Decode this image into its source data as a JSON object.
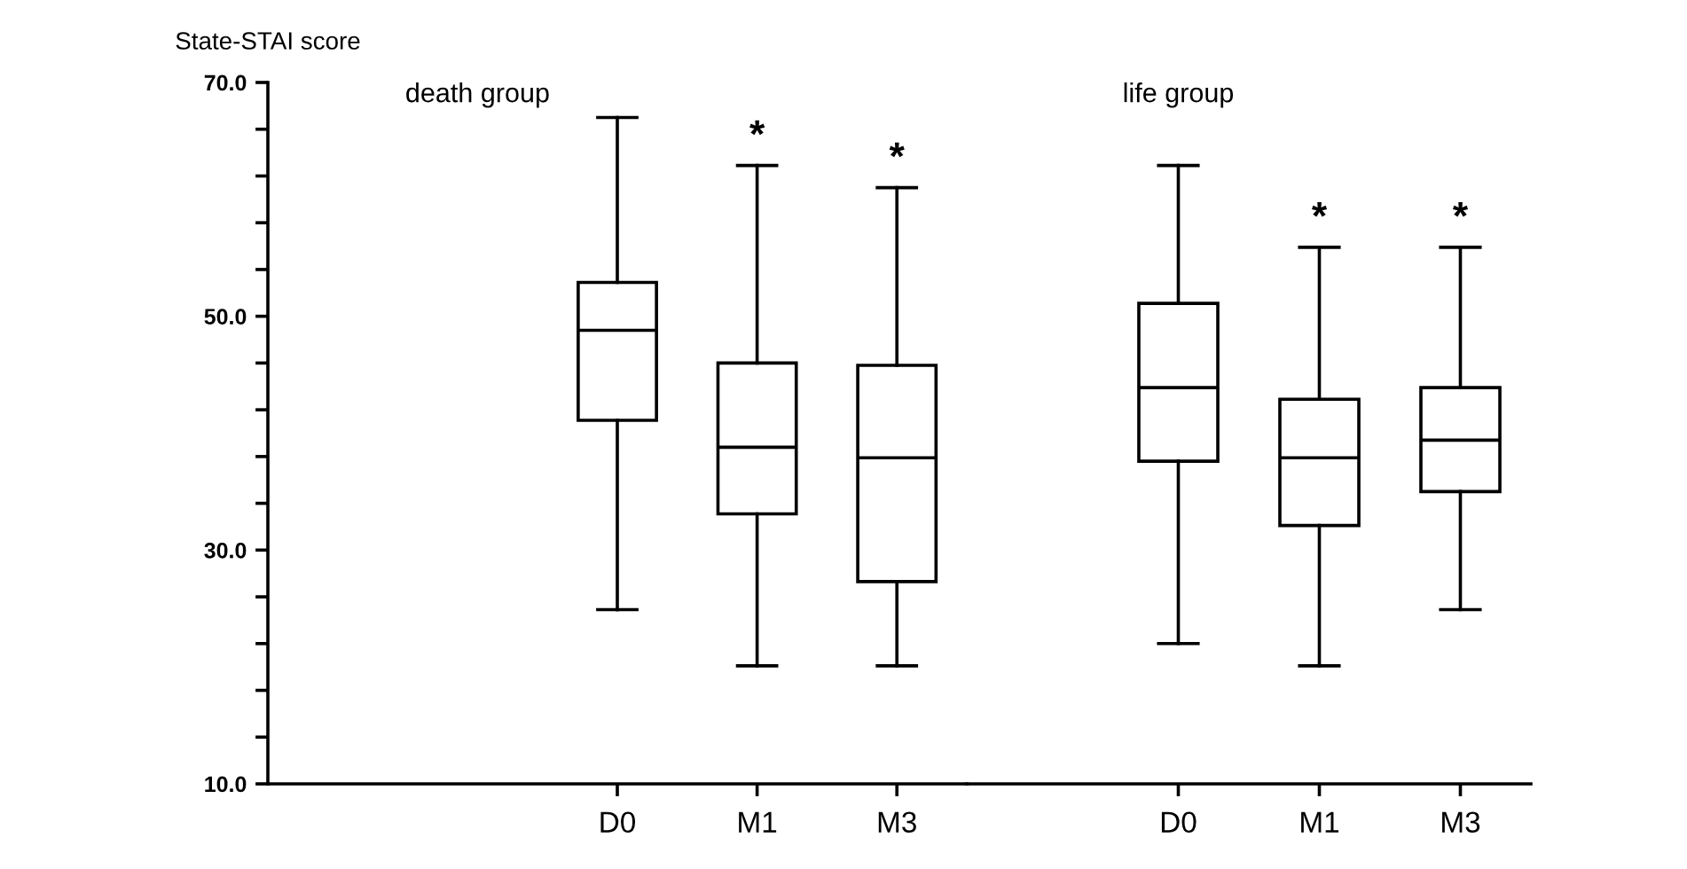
{
  "chart_data": [
    {
      "type": "box",
      "title": "death group",
      "ylabel": "State-STAI score",
      "categories": [
        null,
        null,
        "D0",
        "M1",
        "M3"
      ],
      "boxes": [
        null,
        null,
        {
          "low": 24.9,
          "q1": 41.1,
          "median": 48.8,
          "q3": 52.9,
          "high": 67.0
        },
        {
          "low": 20.1,
          "q1": 33.1,
          "median": 38.8,
          "q3": 46.0,
          "high": 62.9
        },
        {
          "low": 20.1,
          "q1": 27.3,
          "median": 37.9,
          "q3": 45.8,
          "high": 61.0
        }
      ],
      "color": "#000000",
      "ylim": [
        10,
        70
      ],
      "yticks": [
        {
          "value": 10,
          "label": "10.0"
        },
        {
          "value": 14,
          "label": null
        },
        {
          "value": 18,
          "label": null
        },
        {
          "value": 22,
          "label": null
        },
        {
          "value": 26,
          "label": null
        },
        {
          "value": 30,
          "label": "30.0"
        },
        {
          "value": 34,
          "label": null
        },
        {
          "value": 38,
          "label": null
        },
        {
          "value": 42,
          "label": null
        },
        {
          "value": 46,
          "label": null
        },
        {
          "value": 50,
          "label": "50.0"
        },
        {
          "value": 54,
          "label": null
        },
        {
          "value": 58,
          "label": null
        },
        {
          "value": 62,
          "label": null
        },
        {
          "value": 66,
          "label": null
        },
        {
          "value": 70,
          "label": "70.0"
        }
      ],
      "annotations": [
        "*",
        "*"
      ]
    },
    {
      "type": "box",
      "title": "life group",
      "categories": [
        null,
        "D0",
        "M1",
        "M3"
      ],
      "boxes": [
        null,
        {
          "low": 22.0,
          "q1": 37.6,
          "median": 43.9,
          "q3": 51.1,
          "high": 62.9
        },
        {
          "low": 20.1,
          "q1": 32.1,
          "median": 37.9,
          "q3": 42.9,
          "high": 55.9
        },
        {
          "low": 24.9,
          "q1": 35.0,
          "median": 39.4,
          "q3": 43.9,
          "high": 55.9
        }
      ],
      "color": "#000000",
      "ylim": [
        10,
        70
      ],
      "tick_labels": "x",
      "annotations": [
        "*",
        "*"
      ]
    }
  ]
}
